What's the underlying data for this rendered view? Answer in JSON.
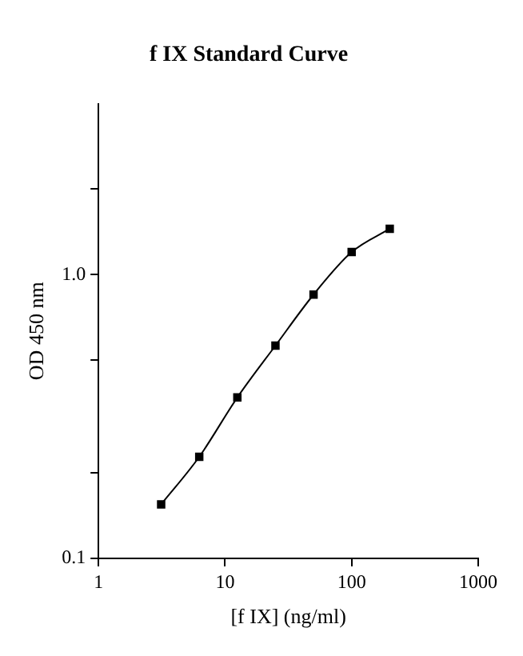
{
  "chart_data": {
    "type": "line",
    "title": "f IX Standard Curve",
    "xlabel": "[f IX] (ng/ml)",
    "ylabel": "OD 450 nm",
    "x": [
      3.125,
      6.25,
      12.5,
      25,
      50,
      100,
      200
    ],
    "series": [
      {
        "color": "#000000",
        "values": [
          0.155,
          0.228,
          0.369,
          0.562,
          0.85,
          1.2,
          1.45
        ]
      }
    ],
    "log": "xy",
    "xlim": [
      1,
      1000
    ],
    "xticks": [
      1,
      10,
      100,
      1000
    ],
    "ylim": [
      0.1,
      4
    ],
    "yticks": [
      {
        "value": 0.1,
        "label": "0.1"
      },
      {
        "value": 0.2,
        "label": null
      },
      {
        "value": 0.5,
        "label": null
      },
      {
        "value": 1,
        "label": "1.0"
      },
      {
        "value": 2,
        "label": null
      }
    ],
    "grid": false,
    "legend": false,
    "marker": "square",
    "line_style": "solid"
  }
}
